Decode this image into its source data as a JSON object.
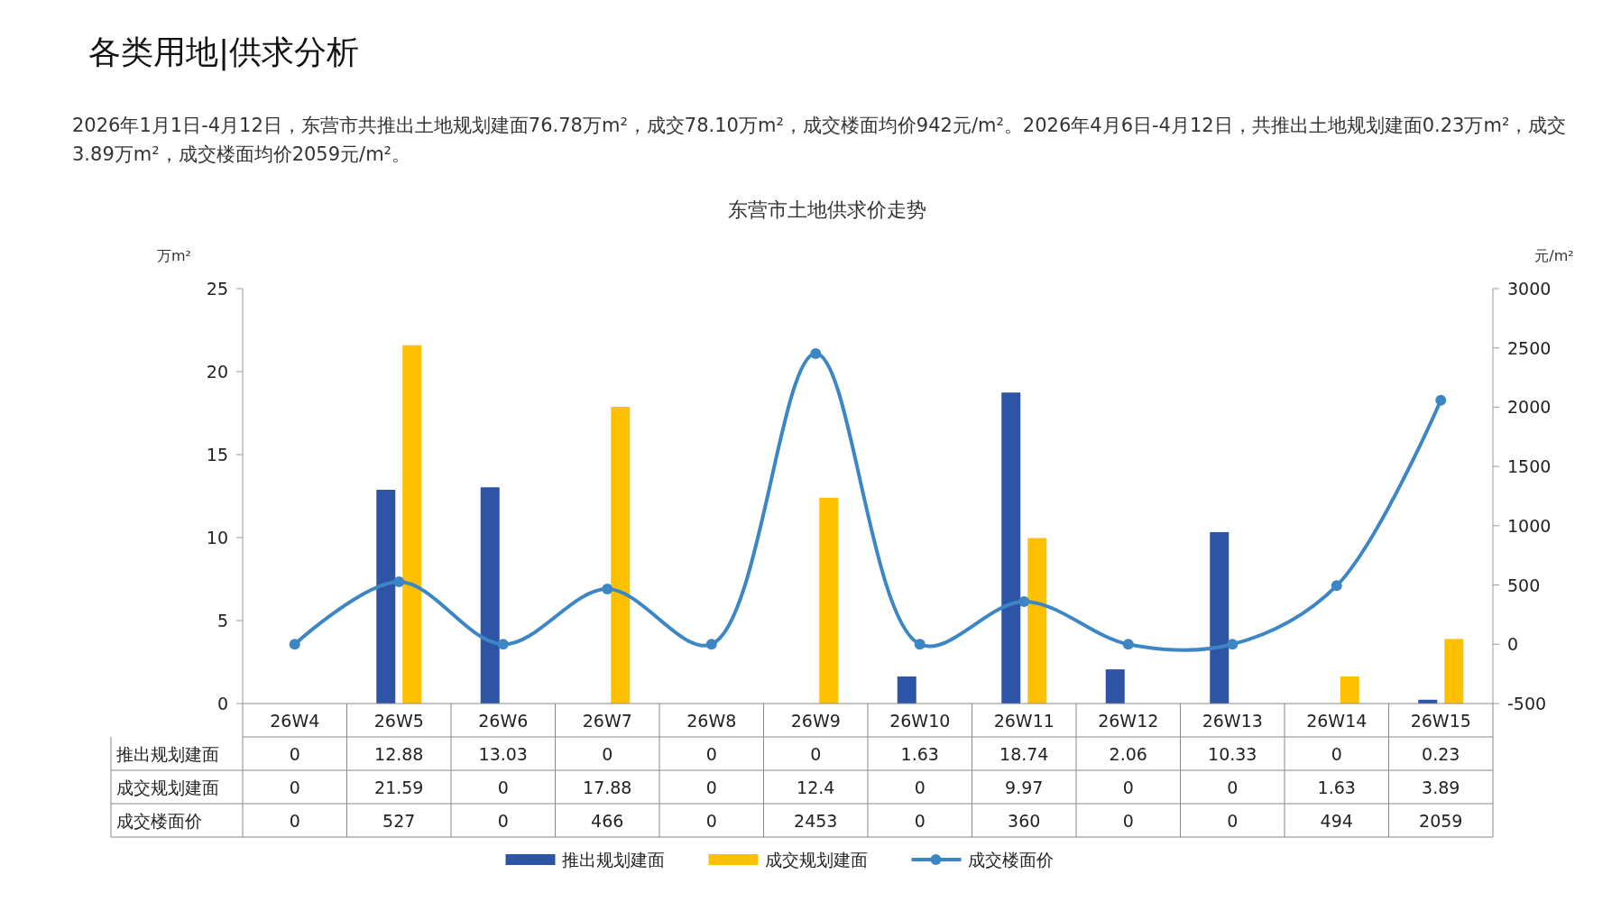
{
  "chart_data": {
    "type": "bar",
    "title": "东营市土地供求价走势",
    "subtitle": "2026年1月1日-4月12日，东营市共推出土地规划建面76.78万m²，成交78.10万m²，成交楼面均价942元/m²。2026年4月6日-4月12日，共推出土地规划建面0.23万m²，成交3.89万m²，成交楼面均价2059元/m²。",
    "annotations": [
      "各类用地|供求分析"
    ],
    "ylabel": "万m²",
    "y2label": "元/m²",
    "categories": [
      "26W4",
      "26W5",
      "26W6",
      "26W7",
      "26W8",
      "26W9",
      "26W10",
      "26W11",
      "26W12",
      "26W13",
      "26W14",
      "26W15"
    ],
    "series": [
      {
        "name": "推出规划建面",
        "color": "#2e55a5",
        "values": [
          0,
          12.88,
          13.03,
          0,
          0,
          0,
          1.63,
          18.74,
          2.06,
          10.33,
          0,
          0.23
        ]
      },
      {
        "name": "成交规划建面",
        "color": "#ffc000",
        "values": [
          0,
          21.59,
          0,
          17.88,
          0,
          12.4,
          0,
          9.97,
          0,
          0,
          1.63,
          3.89
        ]
      },
      {
        "name": "成交楼面价",
        "type": "line",
        "axis": "y2",
        "color": "#3d86c6",
        "values": [
          0,
          527,
          0,
          466,
          0,
          2453,
          0,
          360,
          0,
          0,
          494,
          2059
        ]
      }
    ],
    "ylim": [
      0,
      25
    ],
    "yticks": [
      0,
      5,
      10,
      15,
      20,
      25
    ],
    "y2lim": [
      -500,
      3000
    ],
    "y2ticks": [
      -500,
      0,
      500,
      1000,
      1500,
      2000,
      2500,
      3000
    ],
    "grid": false,
    "legend": "bottom",
    "marker": "circle",
    "data_labels": true
  }
}
